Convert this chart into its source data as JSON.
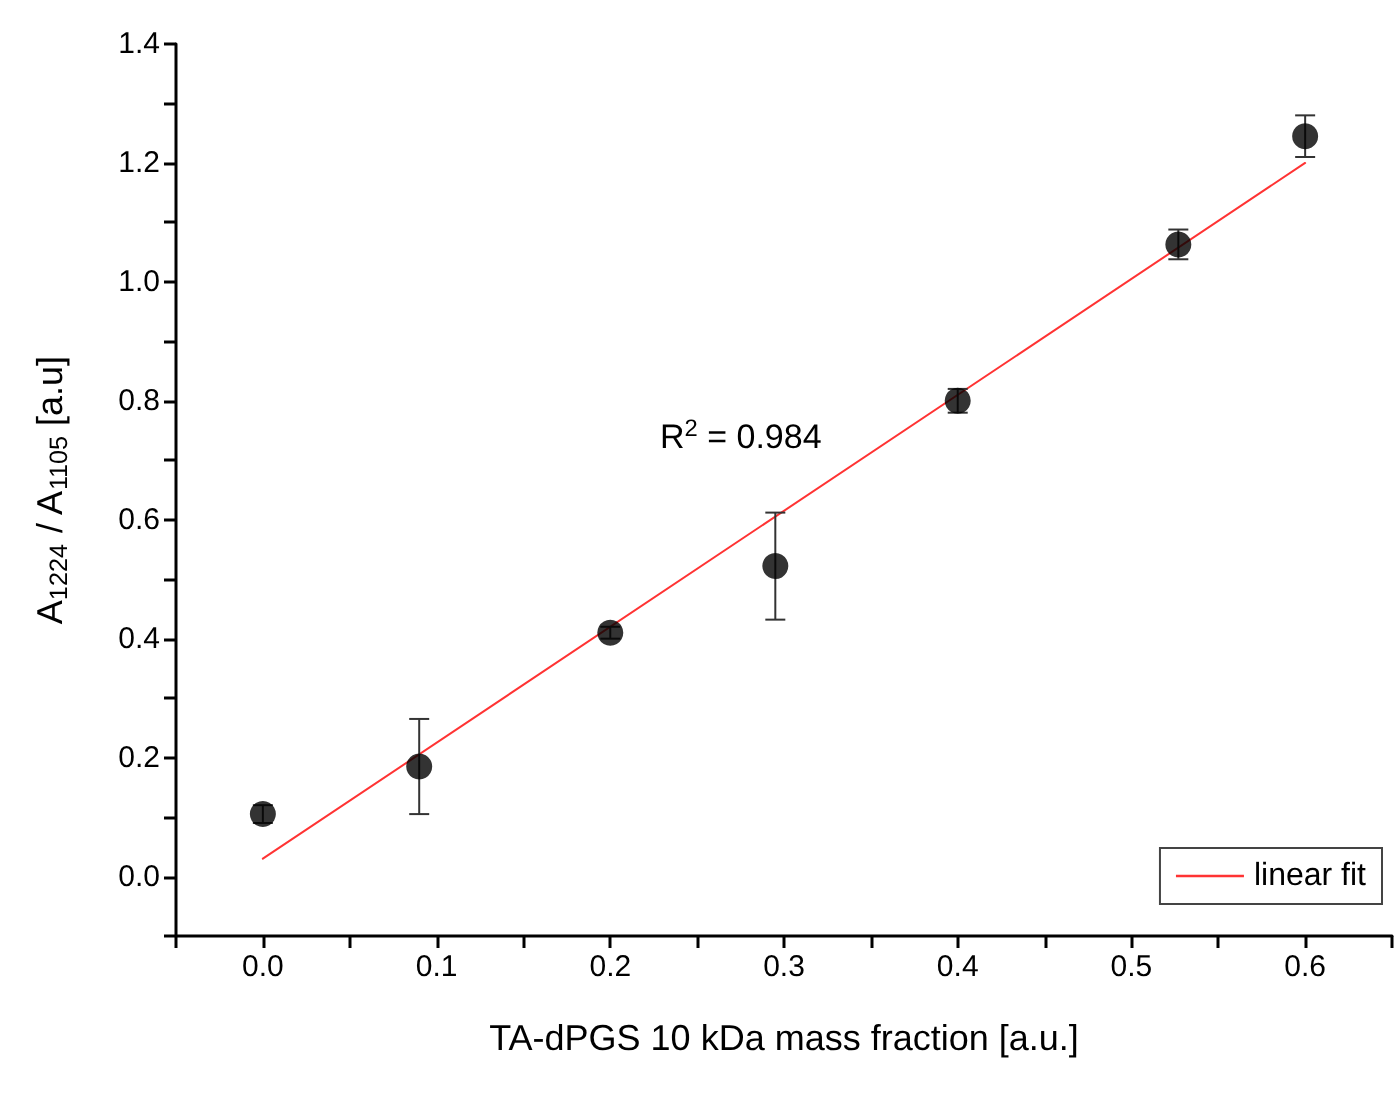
{
  "chart_data": {
    "type": "scatter",
    "xlabel": "TA-dPGS 10 kDa mass fraction [a.u.]",
    "ylabel": "A$_{1224}$ / A$_{1105}$ [a.u]",
    "xlim": [
      -0.05,
      0.65
    ],
    "xticks": [
      {
        "value": -0.05,
        "label": null
      },
      {
        "value": 0.0,
        "label": "0.0"
      },
      {
        "value": 0.05,
        "label": null
      },
      0.1,
      {
        "value": 0.15,
        "label": null
      },
      0.2,
      {
        "value": 0.25,
        "label": null
      },
      0.3,
      {
        "value": 0.35,
        "label": null
      },
      0.4,
      {
        "value": 0.45,
        "label": null
      },
      0.5,
      {
        "value": 0.55,
        "label": null
      },
      0.6,
      {
        "value": 0.65,
        "label": null
      }
    ],
    "ylim": [
      -0.1,
      1.4
    ],
    "yticks": [
      {
        "value": -0.1,
        "label": null
      },
      {
        "value": 0.0,
        "label": "0.0"
      },
      {
        "value": 0.1,
        "label": null
      },
      0.2,
      {
        "value": 0.3,
        "label": null
      },
      0.4,
      {
        "value": 0.5,
        "label": null
      },
      0.6,
      {
        "value": 0.7,
        "label": null
      },
      0.8,
      {
        "value": 0.9,
        "label": null
      },
      {
        "value": 1.0,
        "label": "1.0"
      },
      {
        "value": 1.1,
        "label": null
      },
      1.2,
      {
        "value": 1.3,
        "label": null
      },
      1.4
    ],
    "grid": false,
    "legend": "bottom right",
    "marker": "circle",
    "series": [
      {
        "color": "#000000",
        "x": [
          0.0,
          0.09,
          0.2,
          0.295,
          0.4,
          0.527,
          0.6
        ],
        "values": [
          0.105,
          0.185,
          0.41,
          0.522,
          0.8,
          1.063,
          1.245
        ],
        "errors": [
          0.015,
          0.08,
          0.01,
          0.09,
          0.02,
          0.025,
          0.035
        ]
      },
      {
        "type": "line",
        "name": "linear fit",
        "color": "#ff3333",
        "x": [
          0.0,
          0.6
        ],
        "values": [
          0.03,
          1.2
        ],
        "marker": "none",
        "line_style": "solid"
      }
    ],
    "annotations": [
      "R$^{2}$ = 0.984"
    ]
  }
}
